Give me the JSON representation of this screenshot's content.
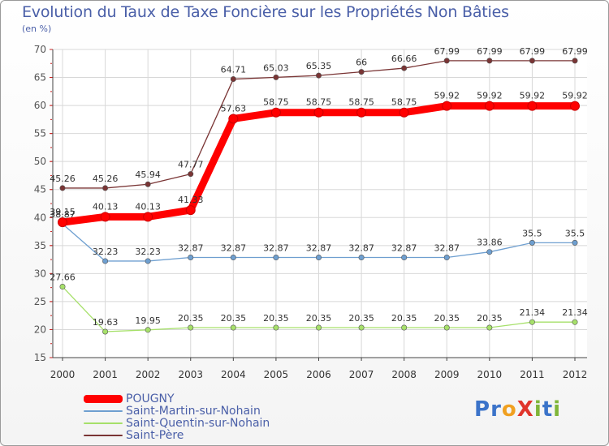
{
  "title": "Evolution du Taux de Taxe Foncière sur les Propriétés Non Bâties",
  "unit_label": "(en %)",
  "logo": {
    "text": "ProXiti",
    "letters": [
      "P",
      "r",
      "o",
      "X",
      "i",
      "t",
      "i"
    ],
    "colors": [
      "#3b73c9",
      "#3b73c9",
      "#f0a020",
      "#e0342b",
      "#7fb539",
      "#3b73c9",
      "#7fb539"
    ]
  },
  "chart_data": {
    "type": "line",
    "title": "Evolution du Taux de Taxe Foncière sur les Propriétés Non Bâties",
    "ylabel": "(en %)",
    "xlabel": "",
    "x": [
      "2000",
      "2001",
      "2002",
      "2003",
      "2004",
      "2005",
      "2006",
      "2007",
      "2008",
      "2009",
      "2010",
      "2011",
      "2012"
    ],
    "ylim": [
      15,
      70
    ],
    "yticks": [
      15,
      20,
      25,
      30,
      35,
      40,
      45,
      50,
      55,
      60,
      65,
      70
    ],
    "grid": true,
    "legend_position": "bottom-left",
    "series": [
      {
        "name": "POUGNY",
        "color": "#ff0000",
        "thick": true,
        "values": [
          39.15,
          40.13,
          40.13,
          41.33,
          57.63,
          58.75,
          58.75,
          58.75,
          58.75,
          59.92,
          59.92,
          59.92,
          59.92
        ],
        "labels": [
          "39.15",
          "40.13",
          "40.13",
          "41.33",
          "57.63",
          "58.75",
          "58.75",
          "58.75",
          "58.75",
          "59.92",
          "59.92",
          "59.92",
          "59.92"
        ]
      },
      {
        "name": "Saint-Martin-sur-Nohain",
        "color": "#6e9fd0",
        "thick": false,
        "values": [
          38.87,
          32.23,
          32.23,
          32.87,
          32.87,
          32.87,
          32.87,
          32.87,
          32.87,
          32.87,
          33.86,
          35.5,
          35.5
        ],
        "labels": [
          "38.87",
          "32.23",
          "32.23",
          "32.87",
          "32.87",
          "32.87",
          "32.87",
          "32.87",
          "32.87",
          "32.87",
          "33.86",
          "35.5",
          "35.5"
        ]
      },
      {
        "name": "Saint-Quentin-sur-Nohain",
        "color": "#a6e06a",
        "thick": false,
        "values": [
          27.66,
          19.63,
          19.95,
          20.35,
          20.35,
          20.35,
          20.35,
          20.35,
          20.35,
          20.35,
          20.35,
          21.34,
          21.34
        ],
        "labels": [
          "27.66",
          "19.63",
          "19.95",
          "20.35",
          "20.35",
          "20.35",
          "20.35",
          "20.35",
          "20.35",
          "20.35",
          "20.35",
          "21.34",
          "21.34"
        ]
      },
      {
        "name": "Saint-Père",
        "color": "#7a3535",
        "thick": false,
        "values": [
          45.26,
          45.26,
          45.94,
          47.77,
          64.71,
          65.03,
          65.35,
          66,
          66.66,
          67.99,
          67.99,
          67.99,
          67.99
        ],
        "labels": [
          "45.26",
          "45.26",
          "45.94",
          "47.77",
          "64.71",
          "65.03",
          "65.35",
          "66",
          "66.66",
          "67.99",
          "67.99",
          "67.99",
          "67.99"
        ]
      }
    ]
  }
}
